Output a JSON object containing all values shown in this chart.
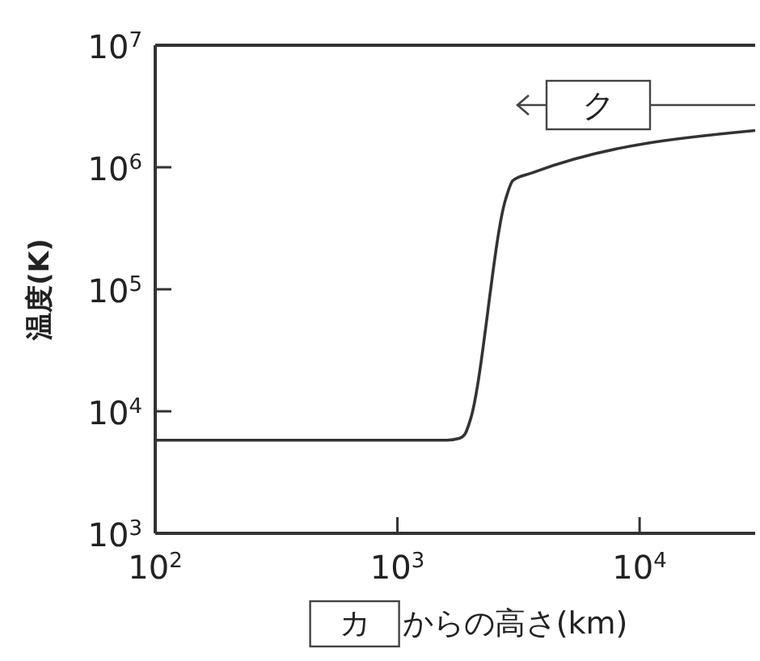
{
  "chart_data": {
    "type": "line",
    "xlabel": "カ からの高さ(km)",
    "ylabel": "温度(K)",
    "log": "xy",
    "xlim": [
      100,
      30000
    ],
    "ylim": [
      1000,
      10000000
    ],
    "xticks": [
      {
        "value": 100,
        "label": "10$^{2}$"
      },
      {
        "value": 1000,
        "label": "10$^{3}$"
      },
      {
        "value": 10000,
        "label": "10$^{4}$"
      }
    ],
    "yticks": [
      {
        "value": 1000,
        "label": "10$^{3}$"
      },
      {
        "value": 10000,
        "label": "10$^{4}$"
      },
      {
        "value": 100000,
        "label": "10$^{5}$"
      },
      {
        "value": 1000000,
        "label": "10$^{6}$"
      },
      {
        "value": 10000000,
        "label": "10$^{7}$"
      }
    ],
    "grid": false,
    "marker": "none",
    "line_style": "solid",
    "series": [
      {
        "color": "#333333",
        "x": [
          100,
          1600,
          1800,
          1900,
          2000,
          2800,
          3000,
          3600,
          30000
        ],
        "values": [
          5800,
          5800,
          6000,
          6500,
          8500,
          550000,
          780000,
          900000,
          2000000
        ]
      }
    ],
    "annotations": [
      "ク"
    ]
  }
}
